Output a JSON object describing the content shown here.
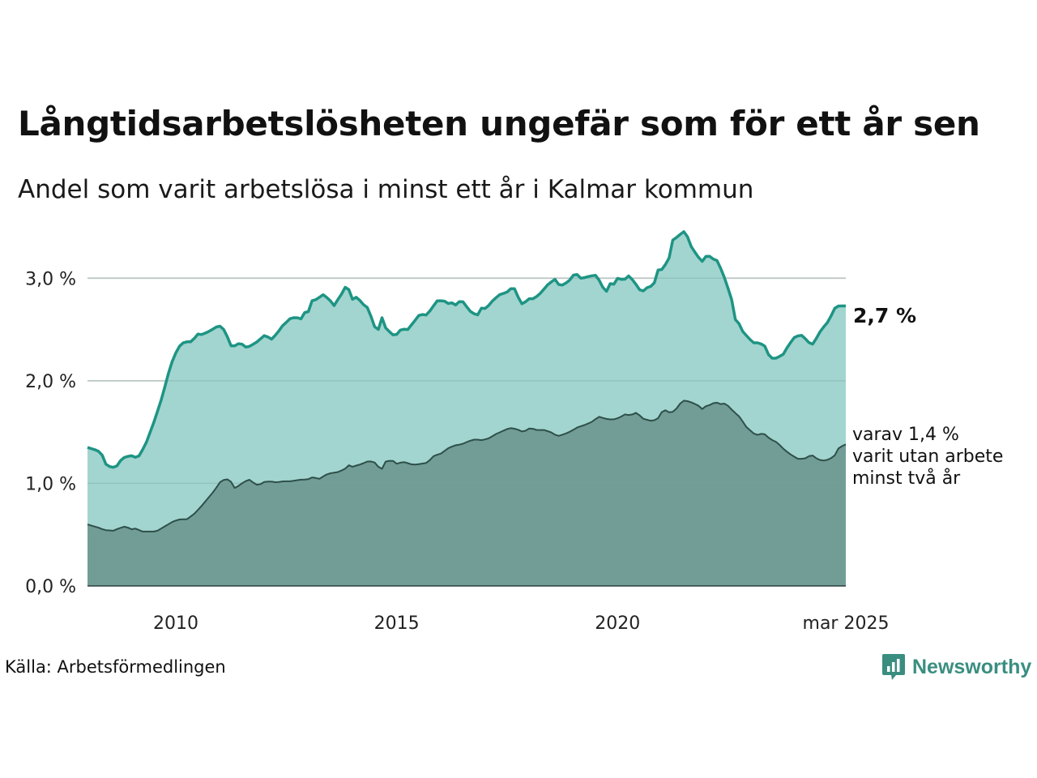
{
  "title": "Långtidsarbetslösheten ungefär som för ett år sen",
  "subtitle": "Andel som varit arbetslösa i minst ett år i Kalmar kommun",
  "source": "Källa: Arbetsförmedlingen",
  "brand": "Newsworthy",
  "chart_data": {
    "type": "area",
    "x_start": "2008-01",
    "x_end": "2025-03",
    "x_step": "month",
    "xlim": [
      "2008-01",
      "2025-03"
    ],
    "ylim": [
      0,
      3.5
    ],
    "y_ticks": [
      0,
      1,
      2,
      3
    ],
    "y_tick_labels": [
      "0,0 %",
      "1,0 %",
      "2,0 %",
      "3,0 %"
    ],
    "x_tick_positions": [
      "2010-01",
      "2015-01",
      "2020-01",
      "2025-03"
    ],
    "x_tick_labels": [
      "2010",
      "2015",
      "2020",
      "mar 2025"
    ],
    "grid": true,
    "colors": {
      "total_fill": "#a2d5cf",
      "total_line": "#1e9484",
      "two_year_fill": "#719d96",
      "two_year_line": "#2f4f4a",
      "grid": "#dcdcdc"
    },
    "series": [
      {
        "key": "total",
        "keyframes": [
          [
            "2008-01",
            1.35
          ],
          [
            "2008-03",
            1.33
          ],
          [
            "2008-05",
            1.3
          ],
          [
            "2008-06",
            1.2
          ],
          [
            "2008-07",
            1.16
          ],
          [
            "2008-08",
            1.17
          ],
          [
            "2008-09",
            1.14
          ],
          [
            "2008-10",
            1.2
          ],
          [
            "2008-11",
            1.24
          ],
          [
            "2008-12",
            1.26
          ],
          [
            "2009-02",
            1.27
          ],
          [
            "2009-03",
            1.25
          ],
          [
            "2009-04",
            1.27
          ],
          [
            "2009-06",
            1.4
          ],
          [
            "2009-08",
            1.58
          ],
          [
            "2009-10",
            1.78
          ],
          [
            "2009-12",
            2.02
          ],
          [
            "2010-01",
            2.16
          ],
          [
            "2010-02",
            2.22
          ],
          [
            "2010-03",
            2.32
          ],
          [
            "2010-05",
            2.38
          ],
          [
            "2010-07",
            2.38
          ],
          [
            "2010-09",
            2.46
          ],
          [
            "2010-10",
            2.45
          ],
          [
            "2010-12",
            2.48
          ],
          [
            "2011-03",
            2.54
          ],
          [
            "2011-05",
            2.48
          ],
          [
            "2011-06",
            2.35
          ],
          [
            "2011-07",
            2.33
          ],
          [
            "2011-09",
            2.37
          ],
          [
            "2011-10",
            2.35
          ],
          [
            "2011-11",
            2.32
          ],
          [
            "2012-02",
            2.38
          ],
          [
            "2012-04",
            2.44
          ],
          [
            "2012-05",
            2.43
          ],
          [
            "2012-06",
            2.4
          ],
          [
            "2012-08",
            2.47
          ],
          [
            "2012-09",
            2.53
          ],
          [
            "2012-10",
            2.55
          ],
          [
            "2012-11",
            2.6
          ],
          [
            "2013-01",
            2.62
          ],
          [
            "2013-03",
            2.6
          ],
          [
            "2013-04",
            2.69
          ],
          [
            "2013-05",
            2.67
          ],
          [
            "2013-06",
            2.8
          ],
          [
            "2013-07",
            2.79
          ],
          [
            "2013-09",
            2.84
          ],
          [
            "2013-11",
            2.79
          ],
          [
            "2013-12",
            2.72
          ],
          [
            "2014-02",
            2.83
          ],
          [
            "2014-03",
            2.87
          ],
          [
            "2014-04",
            2.97
          ],
          [
            "2014-05",
            2.8
          ],
          [
            "2014-06",
            2.79
          ],
          [
            "2014-07",
            2.83
          ],
          [
            "2014-08",
            2.76
          ],
          [
            "2014-10",
            2.71
          ],
          [
            "2014-12",
            2.52
          ],
          [
            "2015-01",
            2.5
          ],
          [
            "2015-02",
            2.62
          ],
          [
            "2015-03",
            2.52
          ],
          [
            "2015-05",
            2.45
          ],
          [
            "2015-06",
            2.44
          ],
          [
            "2015-08",
            2.52
          ],
          [
            "2015-09",
            2.48
          ],
          [
            "2015-10",
            2.52
          ],
          [
            "2016-01",
            2.65
          ],
          [
            "2016-03",
            2.64
          ],
          [
            "2016-06",
            2.78
          ],
          [
            "2016-08",
            2.78
          ],
          [
            "2016-09",
            2.75
          ],
          [
            "2016-10",
            2.77
          ],
          [
            "2016-11",
            2.73
          ],
          [
            "2017-01",
            2.79
          ],
          [
            "2017-03",
            2.7
          ],
          [
            "2017-04",
            2.66
          ],
          [
            "2017-06",
            2.64
          ],
          [
            "2017-07",
            2.73
          ],
          [
            "2017-08",
            2.7
          ],
          [
            "2017-10",
            2.78
          ],
          [
            "2017-12",
            2.84
          ],
          [
            "2018-02",
            2.86
          ],
          [
            "2018-04",
            2.92
          ],
          [
            "2018-05",
            2.85
          ],
          [
            "2018-06",
            2.76
          ],
          [
            "2018-07",
            2.74
          ],
          [
            "2018-08",
            2.8
          ],
          [
            "2018-10",
            2.8
          ],
          [
            "2018-12",
            2.86
          ],
          [
            "2019-02",
            2.94
          ],
          [
            "2019-04",
            2.99
          ],
          [
            "2019-05",
            2.94
          ],
          [
            "2019-06",
            2.93
          ],
          [
            "2019-08",
            2.97
          ],
          [
            "2019-10",
            3.06
          ],
          [
            "2019-11",
            3.0
          ],
          [
            "2019-12",
            3.0
          ],
          [
            "2020-02",
            3.02
          ],
          [
            "2020-04",
            3.03
          ],
          [
            "2020-06",
            2.9
          ],
          [
            "2020-07",
            2.87
          ],
          [
            "2020-08",
            2.95
          ],
          [
            "2020-09",
            2.94
          ],
          [
            "2020-10",
            3.0
          ],
          [
            "2020-12",
            2.98
          ],
          [
            "2021-01",
            3.03
          ],
          [
            "2021-02",
            3.0
          ],
          [
            "2021-03",
            2.96
          ],
          [
            "2021-05",
            2.86
          ],
          [
            "2021-07",
            2.92
          ],
          [
            "2021-08",
            2.92
          ],
          [
            "2021-09",
            2.97
          ],
          [
            "2021-10",
            3.11
          ],
          [
            "2021-11",
            3.08
          ],
          [
            "2022-01",
            3.2
          ],
          [
            "2022-02",
            3.37
          ],
          [
            "2022-04",
            3.42
          ],
          [
            "2022-05",
            3.46
          ],
          [
            "2022-06",
            3.43
          ],
          [
            "2022-08",
            3.25
          ],
          [
            "2022-09",
            3.26
          ],
          [
            "2022-10",
            3.14
          ],
          [
            "2022-12",
            3.23
          ],
          [
            "2023-02",
            3.18
          ],
          [
            "2023-03",
            3.17
          ],
          [
            "2023-05",
            3.0
          ],
          [
            "2023-07",
            2.8
          ],
          [
            "2023-08",
            2.6
          ],
          [
            "2023-09",
            2.57
          ],
          [
            "2023-10",
            2.49
          ],
          [
            "2023-11",
            2.45
          ],
          [
            "2023-12",
            2.42
          ],
          [
            "2024-01",
            2.37
          ],
          [
            "2024-03",
            2.37
          ],
          [
            "2024-04",
            2.35
          ],
          [
            "2024-05",
            2.33
          ],
          [
            "2024-06",
            2.22
          ],
          [
            "2024-08",
            2.22
          ],
          [
            "2024-10",
            2.26
          ],
          [
            "2024-11",
            2.32
          ],
          [
            "2025-01",
            2.42
          ],
          [
            "2025-03",
            2.45
          ],
          [
            "2025-05",
            2.39
          ],
          [
            "2025-06",
            2.34
          ],
          [
            "2025-07",
            2.38
          ],
          [
            "2025-08",
            2.45
          ],
          [
            "2025-09",
            2.5
          ],
          [
            "2025-11",
            2.58
          ],
          [
            "2026-01",
            2.72
          ],
          [
            "2026-02",
            2.73
          ],
          [
            "2026-04",
            2.73
          ]
        ]
      },
      {
        "key": "two_year",
        "keyframes": [
          [
            "2008-01",
            0.6
          ],
          [
            "2008-03",
            0.58
          ],
          [
            "2008-05",
            0.56
          ],
          [
            "2008-06",
            0.54
          ],
          [
            "2008-07",
            0.55
          ],
          [
            "2008-08",
            0.53
          ],
          [
            "2008-10",
            0.56
          ],
          [
            "2008-12",
            0.58
          ],
          [
            "2009-02",
            0.55
          ],
          [
            "2009-03",
            0.56
          ],
          [
            "2009-05",
            0.53
          ],
          [
            "2009-07",
            0.53
          ],
          [
            "2009-09",
            0.53
          ],
          [
            "2009-11",
            0.57
          ],
          [
            "2010-02",
            0.63
          ],
          [
            "2010-04",
            0.65
          ],
          [
            "2010-06",
            0.65
          ],
          [
            "2010-08",
            0.7
          ],
          [
            "2010-10",
            0.77
          ],
          [
            "2010-12",
            0.85
          ],
          [
            "2011-02",
            0.93
          ],
          [
            "2011-04",
            1.03
          ],
          [
            "2011-06",
            1.04
          ],
          [
            "2011-07",
            1.01
          ],
          [
            "2011-08",
            0.95
          ],
          [
            "2011-10",
            1.0
          ],
          [
            "2011-12",
            1.04
          ],
          [
            "2012-02",
            0.99
          ],
          [
            "2012-03",
            0.98
          ],
          [
            "2012-04",
            1.01
          ],
          [
            "2012-06",
            1.02
          ],
          [
            "2012-08",
            1.01
          ],
          [
            "2012-10",
            1.02
          ],
          [
            "2012-12",
            1.02
          ],
          [
            "2013-02",
            1.03
          ],
          [
            "2013-04",
            1.04
          ],
          [
            "2013-05",
            1.03
          ],
          [
            "2013-06",
            1.06
          ],
          [
            "2013-08",
            1.05
          ],
          [
            "2013-09",
            1.04
          ],
          [
            "2013-10",
            1.08
          ],
          [
            "2013-12",
            1.1
          ],
          [
            "2014-02",
            1.11
          ],
          [
            "2014-04",
            1.14
          ],
          [
            "2014-05",
            1.18
          ],
          [
            "2014-06",
            1.16
          ],
          [
            "2014-07",
            1.17
          ],
          [
            "2014-09",
            1.19
          ],
          [
            "2014-11",
            1.22
          ],
          [
            "2015-01",
            1.2
          ],
          [
            "2015-02",
            1.15
          ],
          [
            "2015-03",
            1.14
          ],
          [
            "2015-04",
            1.22
          ],
          [
            "2015-06",
            1.22
          ],
          [
            "2015-07",
            1.19
          ],
          [
            "2015-09",
            1.21
          ],
          [
            "2015-10",
            1.2
          ],
          [
            "2015-12",
            1.18
          ],
          [
            "2016-02",
            1.19
          ],
          [
            "2016-04",
            1.2
          ],
          [
            "2016-06",
            1.27
          ],
          [
            "2016-08",
            1.29
          ],
          [
            "2016-10",
            1.34
          ],
          [
            "2016-12",
            1.37
          ],
          [
            "2017-02",
            1.38
          ],
          [
            "2017-04",
            1.41
          ],
          [
            "2017-06",
            1.43
          ],
          [
            "2017-08",
            1.42
          ],
          [
            "2017-10",
            1.44
          ],
          [
            "2017-12",
            1.48
          ],
          [
            "2018-02",
            1.51
          ],
          [
            "2018-04",
            1.54
          ],
          [
            "2018-06",
            1.53
          ],
          [
            "2018-08",
            1.5
          ],
          [
            "2018-10",
            1.54
          ],
          [
            "2018-12",
            1.52
          ],
          [
            "2019-02",
            1.52
          ],
          [
            "2019-04",
            1.5
          ],
          [
            "2019-06",
            1.46
          ],
          [
            "2019-08",
            1.48
          ],
          [
            "2019-10",
            1.51
          ],
          [
            "2019-12",
            1.55
          ],
          [
            "2020-02",
            1.57
          ],
          [
            "2020-04",
            1.6
          ],
          [
            "2020-06",
            1.65
          ],
          [
            "2020-08",
            1.63
          ],
          [
            "2020-10",
            1.62
          ],
          [
            "2020-12",
            1.64
          ],
          [
            "2021-02",
            1.68
          ],
          [
            "2021-03",
            1.66
          ],
          [
            "2021-05",
            1.69
          ],
          [
            "2021-07",
            1.63
          ],
          [
            "2021-09",
            1.61
          ],
          [
            "2021-11",
            1.62
          ],
          [
            "2022-01",
            1.73
          ],
          [
            "2022-02",
            1.69
          ],
          [
            "2022-04",
            1.7
          ],
          [
            "2022-06",
            1.79
          ],
          [
            "2022-07",
            1.81
          ],
          [
            "2022-09",
            1.79
          ],
          [
            "2022-11",
            1.76
          ],
          [
            "2022-12",
            1.72
          ],
          [
            "2023-01",
            1.75
          ],
          [
            "2023-03",
            1.77
          ],
          [
            "2023-04",
            1.8
          ],
          [
            "2023-05",
            1.77
          ],
          [
            "2023-07",
            1.78
          ],
          [
            "2023-09",
            1.71
          ],
          [
            "2023-11",
            1.65
          ],
          [
            "2024-01",
            1.55
          ],
          [
            "2024-03",
            1.49
          ],
          [
            "2024-04",
            1.47
          ],
          [
            "2024-06",
            1.49
          ],
          [
            "2024-08",
            1.43
          ],
          [
            "2024-10",
            1.4
          ],
          [
            "2024-12",
            1.33
          ],
          [
            "2025-02",
            1.28
          ],
          [
            "2025-04",
            1.24
          ],
          [
            "2025-06",
            1.24
          ],
          [
            "2025-08",
            1.28
          ],
          [
            "2025-10",
            1.23
          ],
          [
            "2025-12",
            1.22
          ],
          [
            "2026-02",
            1.25
          ],
          [
            "2026-03",
            1.28
          ],
          [
            "2026-04",
            1.35
          ],
          [
            "2026-06",
            1.38
          ]
        ]
      }
    ],
    "end_label": "2,7 %",
    "annotation_lines": [
      "varav 1,4 %",
      "varit utan arbete",
      "minst två år"
    ]
  }
}
